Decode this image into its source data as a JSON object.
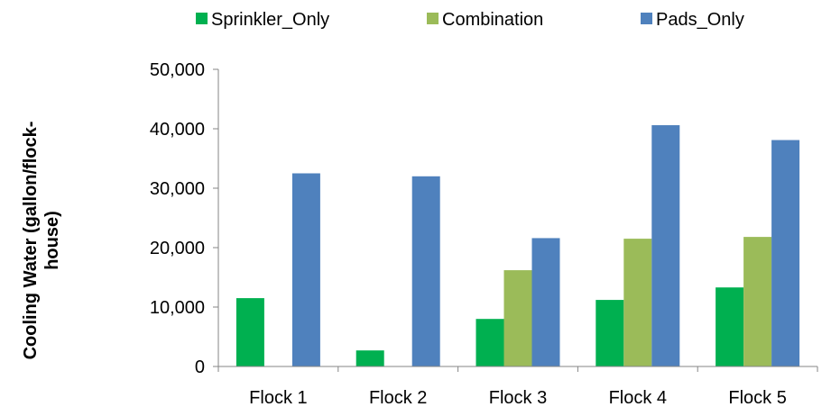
{
  "chart_data": {
    "type": "bar",
    "title": "",
    "xlabel": "",
    "ylabel_lines": [
      "Cooling Water (gallon/flock-",
      "house)"
    ],
    "categories": [
      "Flock 1",
      "Flock 2",
      "Flock 3",
      "Flock 4",
      "Flock 5"
    ],
    "series": [
      {
        "name": "Sprinkler_Only",
        "color": "#00b050",
        "values": [
          11500,
          2700,
          8000,
          11200,
          13300
        ]
      },
      {
        "name": "Combination",
        "color": "#9bbb59",
        "values": [
          null,
          null,
          16200,
          21500,
          21800
        ]
      },
      {
        "name": "Pads_Only",
        "color": "#4f81bd",
        "values": [
          32500,
          32000,
          21600,
          40600,
          38100
        ]
      }
    ],
    "ylim": [
      0,
      50000
    ],
    "yticks": [
      0,
      10000,
      20000,
      30000,
      40000,
      50000
    ],
    "ytick_labels": [
      "0",
      "10,000",
      "20,000",
      "30,000",
      "40,000",
      "50,000"
    ],
    "grid": false,
    "legend_position": "top"
  }
}
